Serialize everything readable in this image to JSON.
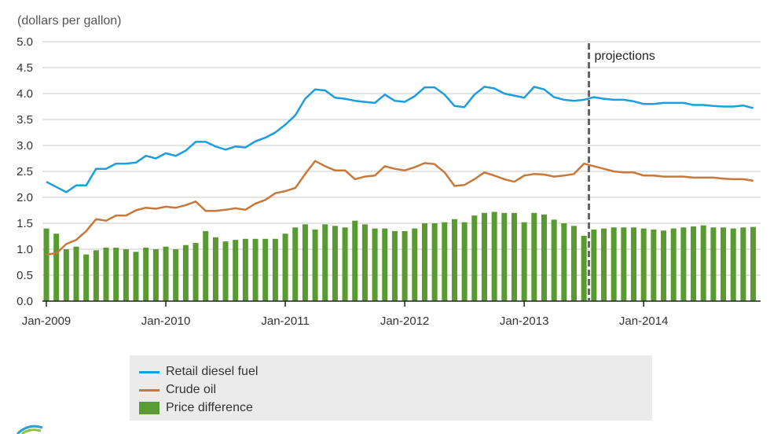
{
  "chart_data": {
    "type": "bar+line",
    "ylabel": "(dollars per gallon)",
    "ylim": [
      0,
      5.0
    ],
    "yticks": [
      "0.0",
      "0.5",
      "1.0",
      "1.5",
      "2.0",
      "2.5",
      "3.0",
      "3.5",
      "4.0",
      "4.5",
      "5.0"
    ],
    "xticks": [
      "Jan-2009",
      "Jan-2010",
      "Jan-2011",
      "Jan-2012",
      "Jan-2013",
      "Jan-2014"
    ],
    "x_start": "Jan-2009",
    "months": 72,
    "projection_start_index": 54.5,
    "annotation": "projections",
    "grid": true,
    "legend_position": "bottom",
    "series": [
      {
        "name": "Retail diesel fuel",
        "type": "line",
        "color": "#1a9ee0",
        "values": [
          2.3,
          2.2,
          2.1,
          2.23,
          2.23,
          2.55,
          2.55,
          2.65,
          2.65,
          2.67,
          2.8,
          2.75,
          2.85,
          2.8,
          2.9,
          3.07,
          3.07,
          2.98,
          2.92,
          2.98,
          2.96,
          3.08,
          3.15,
          3.25,
          3.4,
          3.58,
          3.9,
          4.08,
          4.06,
          3.92,
          3.9,
          3.86,
          3.84,
          3.82,
          3.98,
          3.86,
          3.84,
          3.95,
          4.12,
          4.12,
          3.98,
          3.76,
          3.74,
          3.98,
          4.13,
          4.1,
          4.0,
          3.96,
          3.92,
          4.13,
          4.08,
          3.93,
          3.88,
          3.86,
          3.88,
          3.93,
          3.9,
          3.88,
          3.88,
          3.85,
          3.8,
          3.8,
          3.82,
          3.82,
          3.82,
          3.78,
          3.78,
          3.76,
          3.75,
          3.75,
          3.77,
          3.72
        ]
      },
      {
        "name": "Crude oil",
        "type": "line",
        "color": "#c8783a",
        "values": [
          0.9,
          0.92,
          1.1,
          1.18,
          1.35,
          1.58,
          1.55,
          1.65,
          1.65,
          1.75,
          1.8,
          1.78,
          1.82,
          1.8,
          1.85,
          1.92,
          1.74,
          1.74,
          1.76,
          1.79,
          1.76,
          1.88,
          1.95,
          2.08,
          2.12,
          2.18,
          2.45,
          2.7,
          2.6,
          2.52,
          2.52,
          2.35,
          2.4,
          2.42,
          2.6,
          2.55,
          2.52,
          2.58,
          2.66,
          2.64,
          2.48,
          2.22,
          2.24,
          2.35,
          2.48,
          2.42,
          2.35,
          2.3,
          2.42,
          2.45,
          2.44,
          2.4,
          2.42,
          2.45,
          2.65,
          2.6,
          2.55,
          2.5,
          2.48,
          2.48,
          2.42,
          2.42,
          2.4,
          2.4,
          2.4,
          2.38,
          2.38,
          2.38,
          2.36,
          2.35,
          2.35,
          2.32
        ]
      },
      {
        "name": "Price difference",
        "type": "bar",
        "color": "#5a9a32",
        "values": [
          1.4,
          1.3,
          1.0,
          1.05,
          0.9,
          0.98,
          1.03,
          1.03,
          1.0,
          0.95,
          1.03,
          1.0,
          1.05,
          1.0,
          1.08,
          1.12,
          1.35,
          1.23,
          1.15,
          1.18,
          1.2,
          1.2,
          1.2,
          1.2,
          1.3,
          1.42,
          1.48,
          1.38,
          1.48,
          1.45,
          1.42,
          1.55,
          1.48,
          1.4,
          1.4,
          1.35,
          1.35,
          1.4,
          1.5,
          1.5,
          1.52,
          1.58,
          1.52,
          1.65,
          1.7,
          1.72,
          1.7,
          1.7,
          1.52,
          1.7,
          1.67,
          1.57,
          1.5,
          1.45,
          1.26,
          1.38,
          1.4,
          1.42,
          1.42,
          1.42,
          1.4,
          1.38,
          1.36,
          1.4,
          1.42,
          1.44,
          1.46,
          1.42,
          1.42,
          1.4,
          1.42,
          1.43
        ]
      }
    ]
  }
}
